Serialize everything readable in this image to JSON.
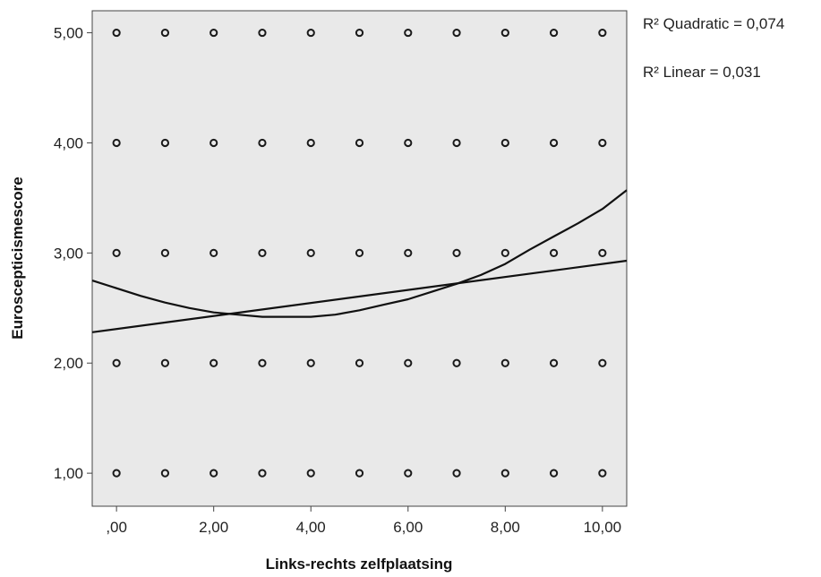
{
  "chart_data": {
    "type": "scatter",
    "xlabel": "Links-rechts zelfplaatsing",
    "ylabel": "Euroscepticismescore",
    "xlim": [
      -0.5,
      10.5
    ],
    "ylim": [
      0.7,
      5.2
    ],
    "x_ticks": [
      0,
      2,
      4,
      6,
      8,
      10
    ],
    "x_tick_labels": [
      ",00",
      "2,00",
      "4,00",
      "6,00",
      "8,00",
      "10,00"
    ],
    "y_ticks": [
      1,
      2,
      3,
      4,
      5
    ],
    "y_tick_labels": [
      "1,00",
      "2,00",
      "3,00",
      "4,00",
      "5,00"
    ],
    "grid": false,
    "background_color": "#e9e9e9",
    "point_x_values": [
      0,
      1,
      2,
      3,
      4,
      5,
      6,
      7,
      8,
      9,
      10
    ],
    "point_y_values": [
      1,
      2,
      3,
      4,
      5
    ],
    "fit_lines": [
      {
        "type": "linear",
        "label": "R² Linear = 0,031",
        "x": [
          -0.5,
          10.5
        ],
        "y": [
          2.28,
          2.93
        ]
      },
      {
        "type": "quadratic",
        "label": "R² Quadratic = 0,074",
        "x": [
          -0.5,
          0.5,
          1.0,
          1.5,
          2.0,
          2.5,
          3.0,
          3.5,
          4.0,
          4.5,
          5.0,
          5.5,
          6.0,
          6.5,
          7.0,
          7.5,
          8.0,
          8.5,
          9.0,
          9.5,
          10.0,
          10.5
        ],
        "y": [
          2.75,
          2.61,
          2.55,
          2.5,
          2.46,
          2.44,
          2.42,
          2.42,
          2.42,
          2.44,
          2.48,
          2.53,
          2.58,
          2.65,
          2.72,
          2.8,
          2.9,
          3.03,
          3.15,
          3.27,
          3.4,
          3.57
        ]
      }
    ],
    "legend_position": "right"
  }
}
